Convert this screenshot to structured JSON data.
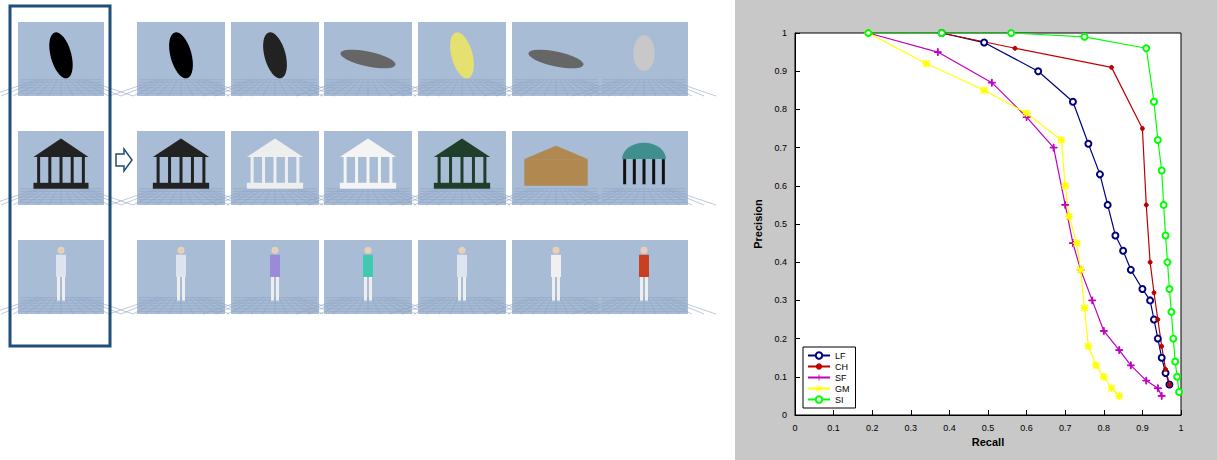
{
  "chart_data": {
    "type": "line",
    "x_label": "Recall",
    "y_label": "Precision",
    "xlim": [
      0,
      1
    ],
    "xticks": [
      0,
      0.1,
      0.2,
      0.3,
      0.4,
      0.5,
      0.6,
      0.7,
      0.8,
      0.9,
      1
    ],
    "ylim": [
      0,
      1
    ],
    "yticks": [
      0,
      0.1,
      0.2,
      0.3,
      0.4,
      0.5,
      0.6,
      0.7,
      0.8,
      0.9,
      1
    ],
    "grid": false,
    "legend": "lower left",
    "series": [
      {
        "name": "LF",
        "color": "#00007f",
        "marker": "circle",
        "x": [
          0.38,
          0.49,
          0.63,
          0.72,
          0.76,
          0.79,
          0.81,
          0.83,
          0.85,
          0.87,
          0.9,
          0.92,
          0.93,
          0.94,
          0.95,
          0.96,
          0.97
        ],
        "values": [
          1.0,
          0.975,
          0.9,
          0.82,
          0.71,
          0.63,
          0.55,
          0.47,
          0.43,
          0.38,
          0.33,
          0.3,
          0.25,
          0.2,
          0.15,
          0.11,
          0.08
        ]
      },
      {
        "name": "CH",
        "color": "#bf0000",
        "marker": "dot",
        "x": [
          0.38,
          0.57,
          0.82,
          0.9,
          0.91,
          0.92,
          0.93,
          0.94,
          0.95,
          0.96,
          0.97
        ],
        "values": [
          1.0,
          0.96,
          0.91,
          0.75,
          0.55,
          0.4,
          0.32,
          0.25,
          0.18,
          0.12,
          0.08
        ]
      },
      {
        "name": "SF",
        "color": "#bf00bf",
        "marker": "plus",
        "x": [
          0.19,
          0.37,
          0.51,
          0.6,
          0.67,
          0.7,
          0.72,
          0.74,
          0.77,
          0.8,
          0.84,
          0.87,
          0.91,
          0.94,
          0.95
        ],
        "values": [
          1.0,
          0.95,
          0.87,
          0.78,
          0.7,
          0.55,
          0.45,
          0.38,
          0.3,
          0.22,
          0.17,
          0.13,
          0.09,
          0.07,
          0.05
        ]
      },
      {
        "name": "GM",
        "color": "#ffff00",
        "marker": "asterisk",
        "x": [
          0.19,
          0.34,
          0.49,
          0.6,
          0.69,
          0.7,
          0.71,
          0.73,
          0.74,
          0.75,
          0.76,
          0.78,
          0.8,
          0.82,
          0.84
        ],
        "values": [
          1.0,
          0.92,
          0.85,
          0.79,
          0.72,
          0.6,
          0.52,
          0.45,
          0.38,
          0.28,
          0.18,
          0.13,
          0.1,
          0.07,
          0.05
        ]
      },
      {
        "name": "SI",
        "color": "#00ff00",
        "marker": "circle",
        "x": [
          0.19,
          0.38,
          0.56,
          0.75,
          0.91,
          0.93,
          0.94,
          0.95,
          0.955,
          0.96,
          0.965,
          0.97,
          0.975,
          0.98,
          0.985,
          0.99,
          0.995
        ],
        "values": [
          1.0,
          1.0,
          1.0,
          0.99,
          0.96,
          0.82,
          0.72,
          0.64,
          0.55,
          0.47,
          0.4,
          0.33,
          0.27,
          0.2,
          0.14,
          0.1,
          0.06
        ]
      }
    ]
  }
}
